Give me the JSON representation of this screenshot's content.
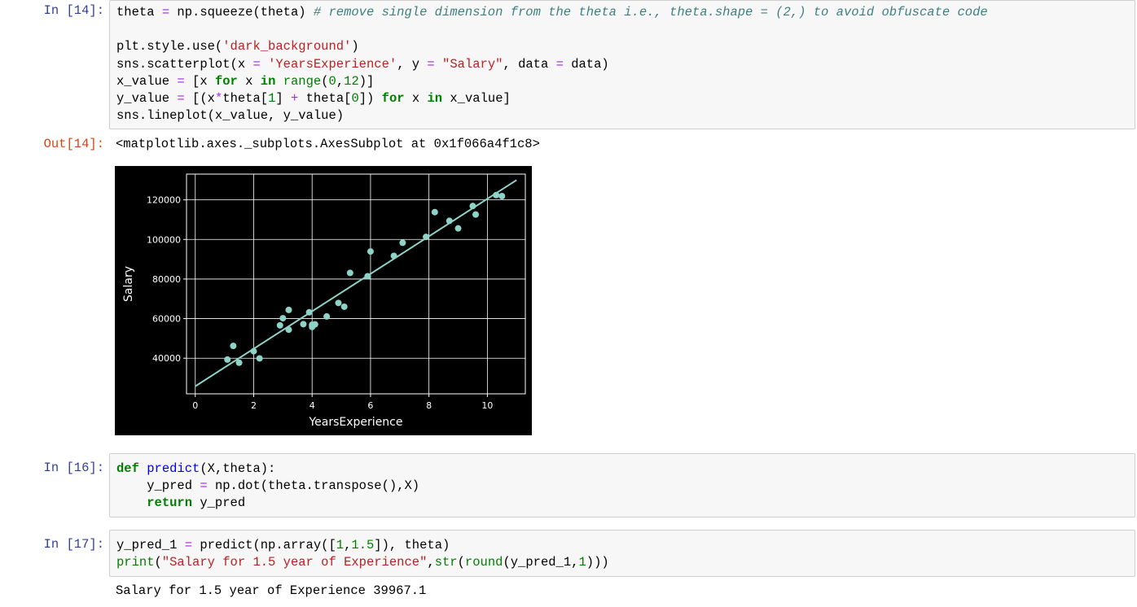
{
  "cells": [
    {
      "prompt": "In [14]:",
      "lines": [
        [
          [
            "n",
            "theta "
          ],
          [
            "op",
            "="
          ],
          [
            "n",
            " np.squeeze(theta) "
          ],
          [
            "cm",
            "# remove single dimension from the theta i.e., theta.shape = (2,) to avoid obfuscate code"
          ]
        ],
        [
          [
            "n",
            ""
          ]
        ],
        [
          [
            "n",
            "plt.style.use("
          ],
          [
            "st",
            "'dark_background'"
          ],
          [
            "n",
            ")"
          ]
        ],
        [
          [
            "n",
            "sns.scatterplot(x "
          ],
          [
            "op",
            "="
          ],
          [
            "n",
            " "
          ],
          [
            "st",
            "'YearsExperience'"
          ],
          [
            "n",
            ", y "
          ],
          [
            "op",
            "="
          ],
          [
            "n",
            " "
          ],
          [
            "st",
            "\"Salary\""
          ],
          [
            "n",
            ", data "
          ],
          [
            "op",
            "="
          ],
          [
            "n",
            " data)"
          ]
        ],
        [
          [
            "n",
            "x_value "
          ],
          [
            "op",
            "="
          ],
          [
            "n",
            " [x "
          ],
          [
            "kw",
            "for"
          ],
          [
            "n",
            " x "
          ],
          [
            "kw",
            "in"
          ],
          [
            "n",
            " "
          ],
          [
            "bi",
            "range"
          ],
          [
            "n",
            "("
          ],
          [
            "nm",
            "0"
          ],
          [
            "n",
            ","
          ],
          [
            "nm",
            "12"
          ],
          [
            "n",
            ")]"
          ]
        ],
        [
          [
            "n",
            "y_value "
          ],
          [
            "op",
            "="
          ],
          [
            "n",
            " [(x"
          ],
          [
            "op",
            "*"
          ],
          [
            "n",
            "theta["
          ],
          [
            "nm",
            "1"
          ],
          [
            "n",
            "] "
          ],
          [
            "op",
            "+"
          ],
          [
            "n",
            " theta["
          ],
          [
            "nm",
            "0"
          ],
          [
            "n",
            "]) "
          ],
          [
            "kw",
            "for"
          ],
          [
            "n",
            " x "
          ],
          [
            "kw",
            "in"
          ],
          [
            "n",
            " x_value]"
          ]
        ],
        [
          [
            "n",
            "sns.lineplot(x_value, y_value)"
          ]
        ]
      ],
      "out_prompt": "Out[14]:",
      "output": "<matplotlib.axes._subplots.AxesSubplot at 0x1f066a4f1c8>"
    },
    {
      "prompt": "In [16]:",
      "lines": [
        [
          [
            "kw",
            "def"
          ],
          [
            "n",
            " "
          ],
          [
            "fn",
            "predict"
          ],
          [
            "n",
            "(X,theta):"
          ]
        ],
        [
          [
            "n",
            "    y_pred "
          ],
          [
            "op",
            "="
          ],
          [
            "n",
            " np.dot(theta.transpose(),X)"
          ]
        ],
        [
          [
            "n",
            "    "
          ],
          [
            "kw",
            "return"
          ],
          [
            "n",
            " y_pred"
          ]
        ]
      ]
    },
    {
      "prompt": "In [17]:",
      "lines": [
        [
          [
            "n",
            "y_pred_1 "
          ],
          [
            "op",
            "="
          ],
          [
            "n",
            " predict(np.array(["
          ],
          [
            "nm",
            "1"
          ],
          [
            "n",
            ","
          ],
          [
            "nm",
            "1.5"
          ],
          [
            "n",
            "]), theta)"
          ]
        ],
        [
          [
            "bi",
            "print"
          ],
          [
            "n",
            "("
          ],
          [
            "st",
            "\"Salary for 1.5 year of Experience\""
          ],
          [
            "n",
            ","
          ],
          [
            "bi",
            "str"
          ],
          [
            "n",
            "("
          ],
          [
            "bi",
            "round"
          ],
          [
            "n",
            "(y_pred_1,"
          ],
          [
            "nm",
            "1"
          ],
          [
            "n",
            ")))"
          ]
        ]
      ],
      "output": "Salary for 1.5 year of Experience 39967.1"
    }
  ],
  "chart_data": {
    "type": "scatter",
    "xlabel": "YearsExperience",
    "ylabel": "Salary",
    "xlim": [
      -0.3,
      11.3
    ],
    "ylim": [
      22000,
      133000
    ],
    "xticks": [
      0,
      2,
      4,
      6,
      8,
      10
    ],
    "yticks": [
      40000,
      60000,
      80000,
      100000,
      120000
    ],
    "grid": true,
    "background": "#000000",
    "point_color": "#8dd3c7",
    "line_color": "#8dd3c7",
    "points": [
      [
        1.1,
        39300
      ],
      [
        1.3,
        46200
      ],
      [
        1.5,
        37700
      ],
      [
        2.0,
        43500
      ],
      [
        2.2,
        39900
      ],
      [
        2.9,
        56600
      ],
      [
        3.0,
        60200
      ],
      [
        3.2,
        54400
      ],
      [
        3.2,
        64400
      ],
      [
        3.7,
        57200
      ],
      [
        3.9,
        63200
      ],
      [
        4.0,
        55800
      ],
      [
        4.0,
        56900
      ],
      [
        4.1,
        57100
      ],
      [
        4.5,
        61100
      ],
      [
        4.9,
        67900
      ],
      [
        5.1,
        66000
      ],
      [
        5.3,
        83100
      ],
      [
        5.9,
        81400
      ],
      [
        6.0,
        93900
      ],
      [
        6.8,
        91700
      ],
      [
        7.1,
        98300
      ],
      [
        7.9,
        101300
      ],
      [
        8.2,
        113800
      ],
      [
        8.7,
        109400
      ],
      [
        9.0,
        105600
      ],
      [
        9.5,
        116900
      ],
      [
        9.6,
        112600
      ],
      [
        10.3,
        122400
      ],
      [
        10.5,
        121900
      ]
    ],
    "line": {
      "x": [
        0,
        11
      ],
      "y": [
        25800,
        130000
      ]
    }
  }
}
